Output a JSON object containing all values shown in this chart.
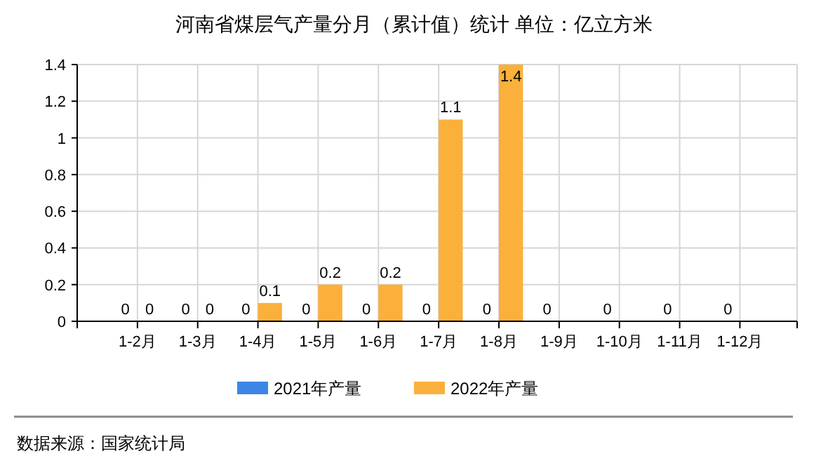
{
  "chart_data": {
    "type": "bar",
    "title": "河南省煤层气产量分月（累计值）统计 单位：亿立方米",
    "categories": [
      "1-2月",
      "1-3月",
      "1-4月",
      "1-5月",
      "1-6月",
      "1-7月",
      "1-8月",
      "1-9月",
      "1-10月",
      "1-11月",
      "1-12月"
    ],
    "series": [
      {
        "name": "2021年产量",
        "color": "#3d85e6",
        "values": [
          0,
          0,
          0,
          0,
          0,
          0,
          0,
          0,
          0,
          0,
          0
        ]
      },
      {
        "name": "2022年产量",
        "color": "#fbb03b",
        "values": [
          0,
          0,
          0.1,
          0.2,
          0.2,
          1.1,
          1.4,
          null,
          null,
          null,
          null
        ]
      }
    ],
    "ylim": [
      0,
      1.4
    ],
    "yticks": [
      0,
      0.2,
      0.4,
      0.6,
      0.8,
      1,
      1.2,
      1.4
    ],
    "grid": true,
    "legend": "bottom",
    "data_labels": true,
    "annotations": [
      "数据来源：国家统计局"
    ]
  }
}
